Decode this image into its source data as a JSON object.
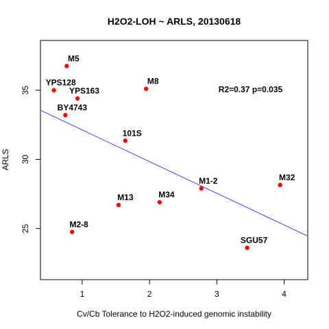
{
  "chart_data": {
    "type": "scatter",
    "title": "H2O2-LOH ~ ARLS, 20130618",
    "xlabel": "Cv/Cb Tolerance to H2O2-induced genomic instability",
    "ylabel": "ARLS",
    "xlim": [
      0.38,
      4.35
    ],
    "ylim": [
      21.3,
      38.6
    ],
    "xticks": [
      1,
      2,
      3,
      4
    ],
    "yticks": [
      25,
      30,
      35
    ],
    "grid": false,
    "point_color": "#ff0000",
    "line_color": "#4040ff",
    "points": [
      {
        "label": "M5",
        "x": 0.77,
        "y": 36.75
      },
      {
        "label": "YPS128",
        "x": 0.58,
        "y": 35.0
      },
      {
        "label": "YPS163",
        "x": 0.93,
        "y": 34.4
      },
      {
        "label": "M8",
        "x": 1.95,
        "y": 35.1
      },
      {
        "label": "BY4743",
        "x": 0.75,
        "y": 33.2
      },
      {
        "label": "101S",
        "x": 1.64,
        "y": 31.35
      },
      {
        "label": "M1-2",
        "x": 2.77,
        "y": 27.9
      },
      {
        "label": "M32",
        "x": 3.94,
        "y": 28.15
      },
      {
        "label": "M13",
        "x": 1.54,
        "y": 26.7
      },
      {
        "label": "M34",
        "x": 2.15,
        "y": 26.9
      },
      {
        "label": "M2-8",
        "x": 0.85,
        "y": 24.75
      },
      {
        "label": "SGU57",
        "x": 3.45,
        "y": 23.6
      }
    ],
    "regression_line": {
      "x": [
        0.38,
        4.35
      ],
      "y": [
        33.55,
        24.45
      ]
    },
    "annotation": {
      "text": "R2=0.37 p=0.035",
      "x": 3.5,
      "y": 35.05
    }
  }
}
